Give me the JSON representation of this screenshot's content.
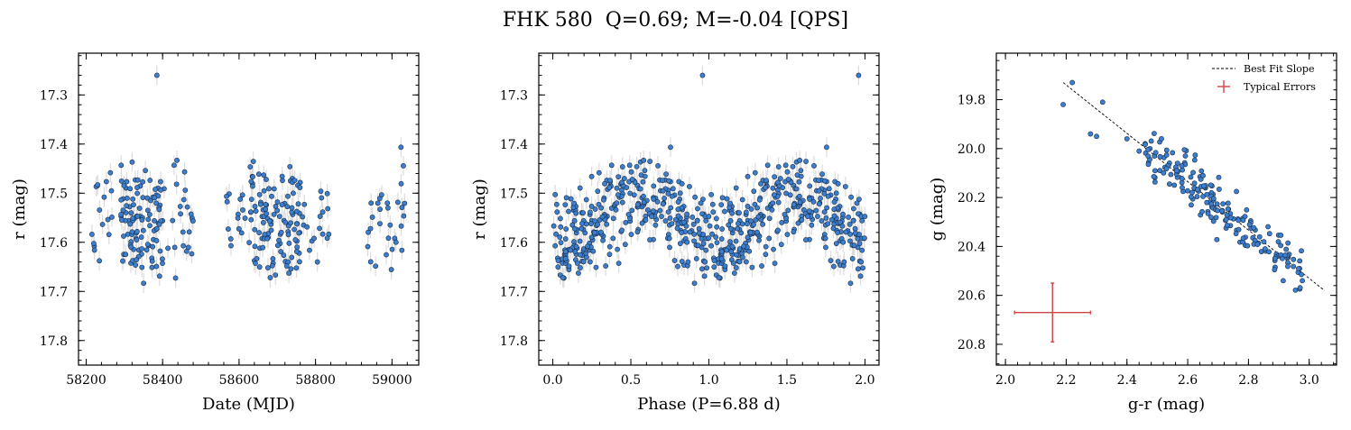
{
  "figure_title": "FHK 580  Q=0.69; M=-0.04 [QPS]",
  "chart_data": [
    {
      "type": "scatter",
      "xlabel": "Date (MJD)",
      "ylabel": "r (mag)",
      "xlim": [
        58180,
        59070
      ],
      "ylim": [
        17.85,
        17.215
      ],
      "y_inverted": true,
      "xticks": [
        58200,
        58400,
        58600,
        58800,
        59000
      ],
      "yticks": [
        17.3,
        17.4,
        17.5,
        17.6,
        17.7,
        17.8
      ],
      "grid": false,
      "marker_color": "#3b7fd1",
      "errorbar_color": "#dcdcdc",
      "typical_y_error": 0.02,
      "points_description": "~330 observations in three seasons: MJD 58210-58480, 58560-58840, 58930-59035",
      "x": [],
      "y": []
    },
    {
      "type": "scatter",
      "xlabel": "Phase (P=6.88 d)",
      "ylabel": "r (mag)",
      "xlim": [
        -0.09,
        2.09
      ],
      "ylim": [
        17.85,
        17.215
      ],
      "y_inverted": true,
      "xticks": [
        0.0,
        0.5,
        1.0,
        1.5,
        2.0
      ],
      "yticks": [
        17.3,
        17.4,
        17.5,
        17.6,
        17.7,
        17.8
      ],
      "grid": false,
      "period_days": 6.88,
      "marker_color": "#3b7fd1",
      "errorbar_color": "#dcdcdc",
      "points_description": "same observations folded on P=6.88 d, plotted twice (phase 0-1 and 1-2)",
      "x": [],
      "y": []
    },
    {
      "type": "scatter",
      "xlabel": "g-r (mag)",
      "ylabel": "g (mag)",
      "xlim": [
        1.97,
        3.09
      ],
      "ylim": [
        20.885,
        19.61
      ],
      "y_inverted": true,
      "xticks": [
        2.0,
        2.2,
        2.4,
        2.6,
        2.8,
        3.0
      ],
      "yticks": [
        19.8,
        20.0,
        20.2,
        20.4,
        20.6,
        20.8
      ],
      "grid": false,
      "legend_position": "top-right",
      "legend": [
        "Best Fit Slope",
        "Typical Errors"
      ],
      "best_fit_line": {
        "x": [
          2.19,
          3.05
        ],
        "y": [
          19.73,
          20.58
        ]
      },
      "typical_error_bar": {
        "x": 2.155,
        "y": 20.67,
        "xerr": 0.125,
        "yerr": 0.12
      },
      "marker_color": "#3b7fd1",
      "error_color": "#cc4444",
      "x": [
        2.19,
        2.22,
        2.28,
        2.3,
        2.32,
        2.4,
        2.44,
        2.46
      ],
      "y": [
        19.82,
        19.73,
        19.94,
        19.95,
        19.81,
        19.96,
        20.01,
        19.98
      ]
    }
  ]
}
